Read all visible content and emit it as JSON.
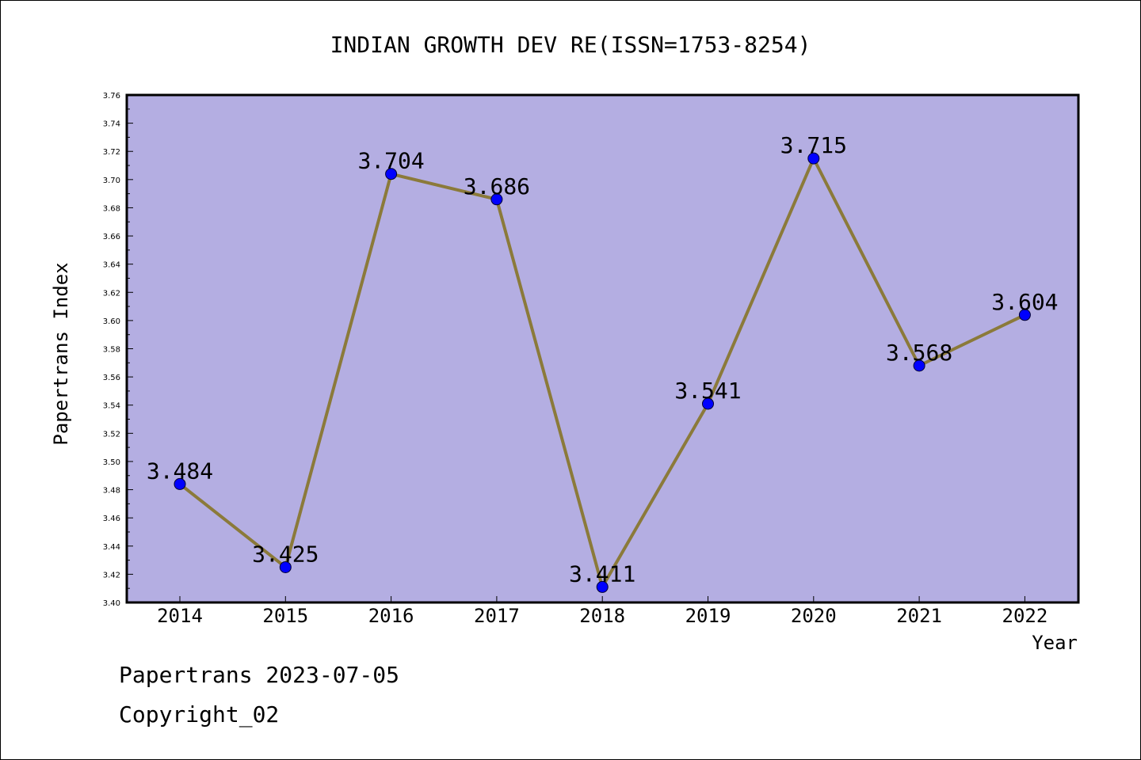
{
  "chart_data": {
    "type": "line",
    "title": "INDIAN GROWTH DEV RE(ISSN=1753-8254)",
    "xlabel": "Year",
    "ylabel": "Papertrans Index",
    "categories": [
      "2014",
      "2015",
      "2016",
      "2017",
      "2018",
      "2019",
      "2020",
      "2021",
      "2022"
    ],
    "values": [
      3.484,
      3.425,
      3.704,
      3.686,
      3.411,
      3.541,
      3.715,
      3.568,
      3.604
    ],
    "data_labels": [
      "3.484",
      "3.425",
      "3.704",
      "3.686",
      "3.411",
      "3.541",
      "3.715",
      "3.568",
      "3.604"
    ],
    "ylim": [
      3.4,
      3.76
    ],
    "y_ticks": [
      "3.40",
      "3.42",
      "3.44",
      "3.46",
      "3.48",
      "3.50",
      "3.52",
      "3.54",
      "3.56",
      "3.58",
      "3.60",
      "3.62",
      "3.64",
      "3.66",
      "3.68",
      "3.70",
      "3.72",
      "3.74",
      "3.76"
    ],
    "grid": false,
    "colors": {
      "plot_background": "#b4aee2",
      "line": "#8b7a3a",
      "marker": "#0000ff"
    }
  },
  "footer": {
    "date_line": "Papertrans 2023-07-05",
    "copyright": "Copyright_02"
  }
}
